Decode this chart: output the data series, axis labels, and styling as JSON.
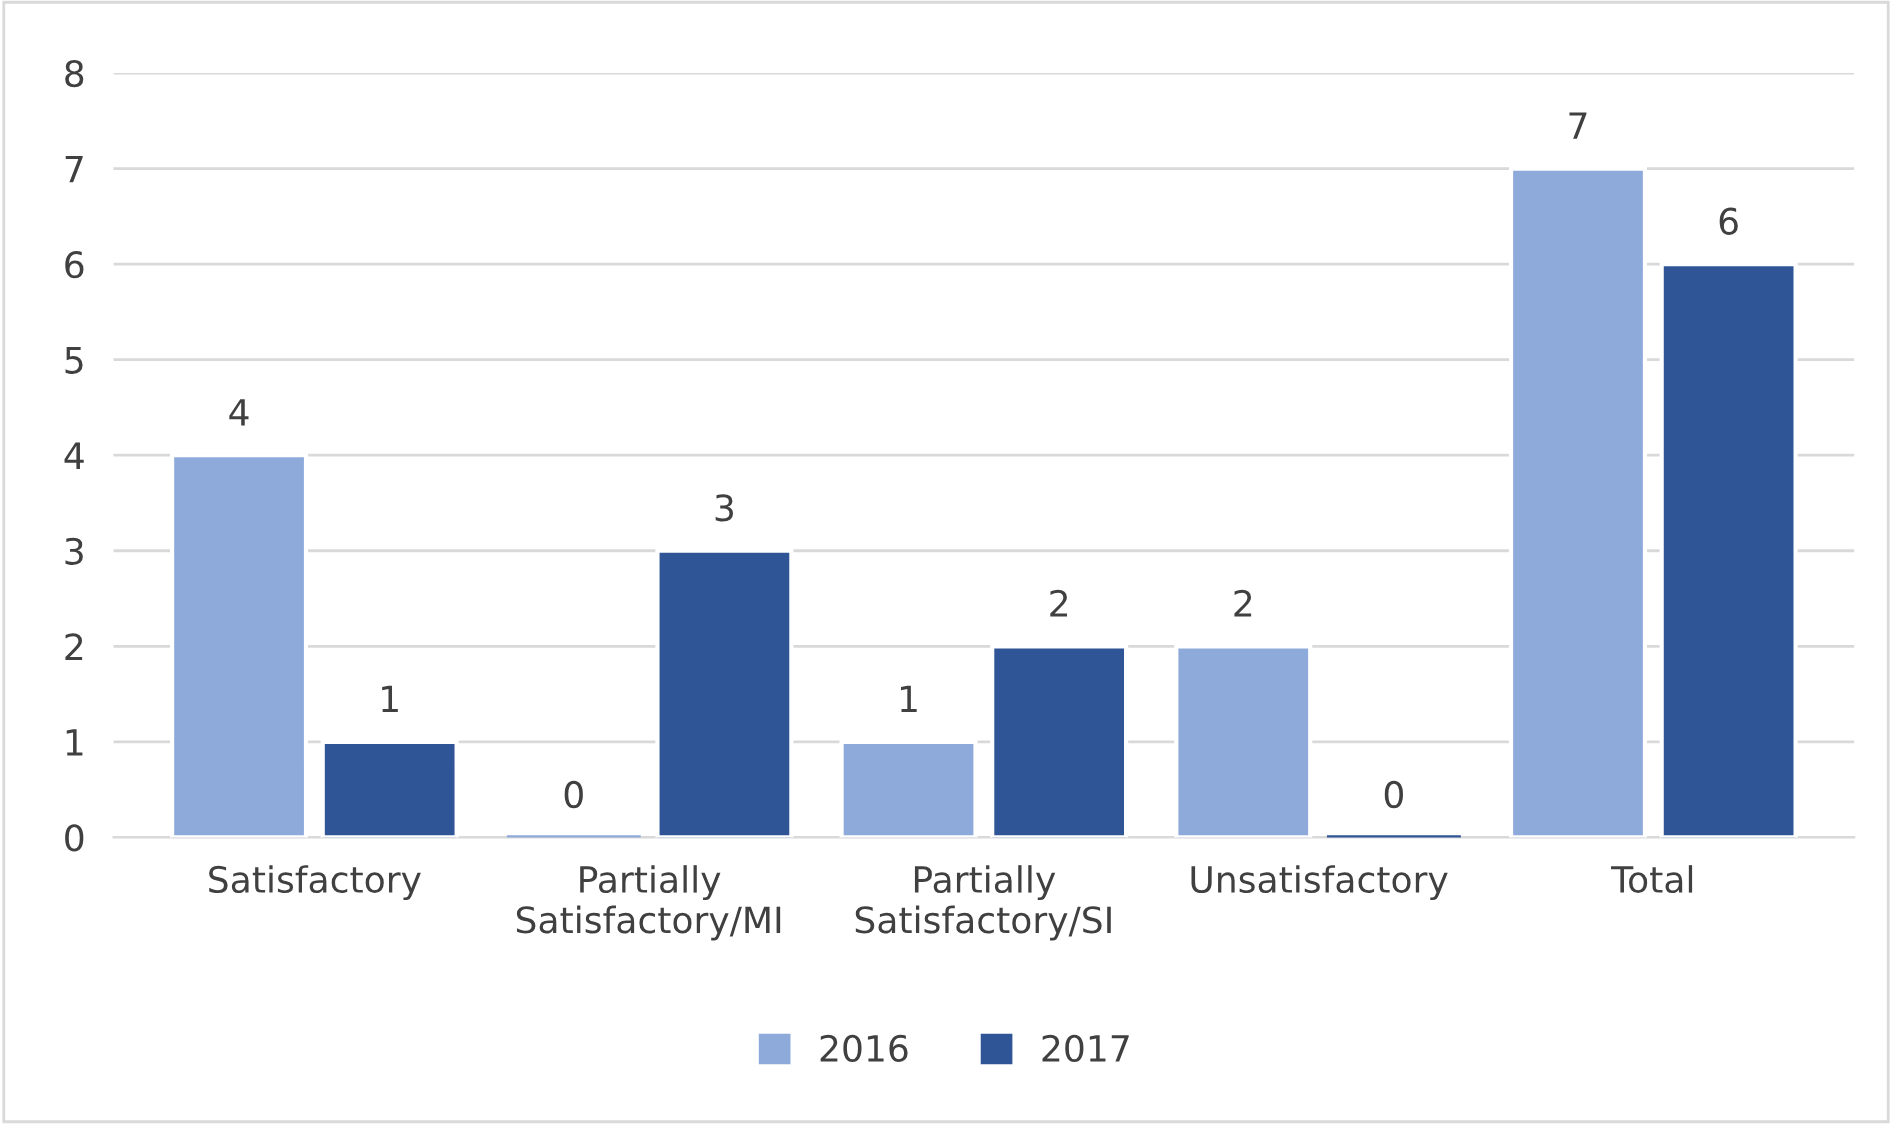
{
  "chart_data": {
    "type": "bar",
    "categories": [
      "Satisfactory",
      "Partially\nSatisfactory/MI",
      "Partially\nSatisfactory/SI",
      "Unsatisfactory",
      "Total"
    ],
    "series": [
      {
        "name": "2016",
        "color": "#8eaadb",
        "values": [
          4,
          0,
          1,
          2,
          7
        ]
      },
      {
        "name": "2017",
        "color": "#2f5597",
        "values": [
          1,
          3,
          2,
          0,
          6
        ]
      }
    ],
    "ylim": [
      0,
      8
    ],
    "yticks": [
      0,
      1,
      2,
      3,
      4,
      5,
      6,
      7,
      8
    ],
    "grid": "y",
    "legend": "bottom",
    "data_labels": true
  }
}
